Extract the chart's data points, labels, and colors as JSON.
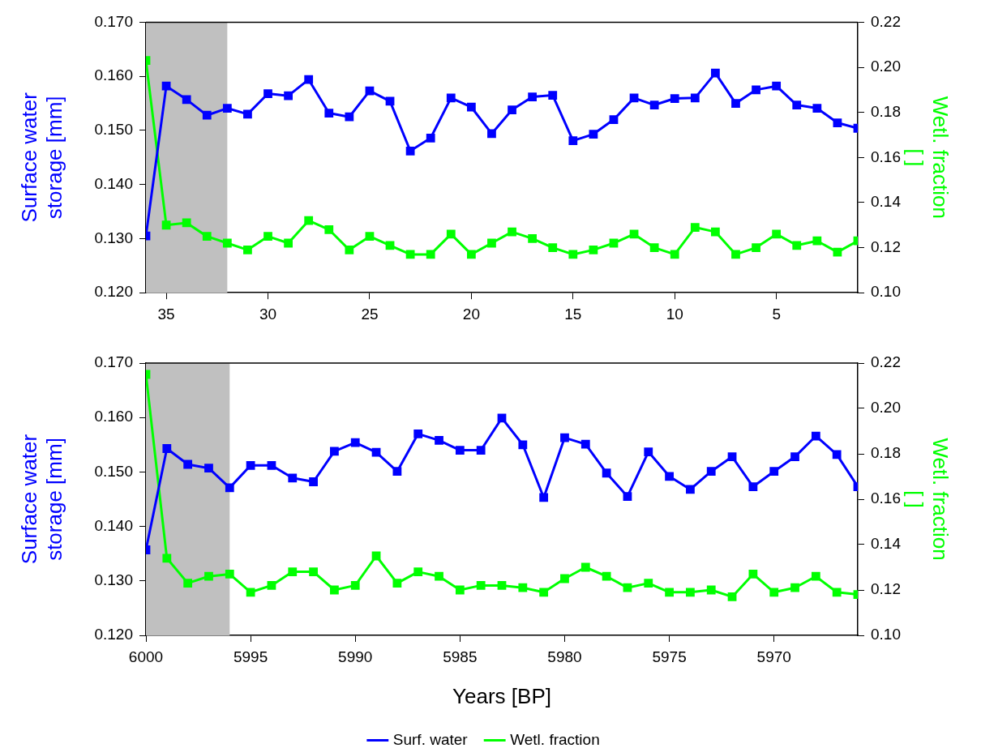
{
  "chart_data": [
    {
      "type": "line",
      "ylabel": "Surface water storage [mm]",
      "y2label": "Wetl. fraction [ ]",
      "marker": "square",
      "line_style": "solid",
      "grid": false,
      "legend": false,
      "x": [
        36,
        35,
        34,
        33,
        32,
        31,
        30,
        29,
        28,
        27,
        26,
        25,
        24,
        23,
        22,
        21,
        20,
        19,
        18,
        17,
        16,
        15,
        14,
        13,
        12,
        11,
        10,
        9,
        8,
        7,
        6,
        5,
        4,
        3,
        2,
        1
      ],
      "xlim": [
        36,
        1
      ],
      "xticks": [
        35,
        30,
        25,
        20,
        15,
        10,
        5
      ],
      "ylim": [
        0.12,
        0.17
      ],
      "yticks": [
        {
          "value": 0.12,
          "label": "0.120"
        },
        {
          "value": 0.13,
          "label": "0.130"
        },
        {
          "value": 0.14,
          "label": "0.140"
        },
        {
          "value": 0.15,
          "label": "0.150"
        },
        {
          "value": 0.16,
          "label": "0.160"
        },
        {
          "value": 0.17,
          "label": "0.170"
        }
      ],
      "y2lim": [
        0.1,
        0.22
      ],
      "y2ticks": [
        {
          "value": 0.1,
          "label": "0.10"
        },
        {
          "value": 0.12,
          "label": "0.12"
        },
        {
          "value": 0.14,
          "label": "0.14"
        },
        {
          "value": 0.16,
          "label": "0.16"
        },
        {
          "value": 0.18,
          "label": "0.18"
        },
        {
          "value": 0.2,
          "label": "0.20"
        },
        {
          "value": 0.22,
          "label": "0.22"
        }
      ],
      "bands": [
        {
          "axis": "x",
          "from": 36,
          "to": 32,
          "color": "#c0c0c0"
        }
      ],
      "series": [
        {
          "color": "#0000ff",
          "values": [
            0.1305,
            0.1582,
            0.1557,
            0.1528,
            0.1541,
            0.153,
            0.1568,
            0.1564,
            0.1594,
            0.1532,
            0.1525,
            0.1573,
            0.1554,
            0.1462,
            0.1486,
            0.156,
            0.1543,
            0.1494,
            0.1538,
            0.1562,
            0.1565,
            0.1481,
            0.1493,
            0.152,
            0.156,
            0.1547,
            0.1559,
            0.156,
            0.1606,
            0.155,
            0.1575,
            0.1582,
            0.1547,
            0.1541,
            0.1514,
            0.1504
          ]
        },
        {
          "color": "#00ff00",
          "axis": "y2",
          "values": [
            0.203,
            0.13,
            0.131,
            0.125,
            0.122,
            0.119,
            0.125,
            0.122,
            0.132,
            0.128,
            0.119,
            0.125,
            0.121,
            0.117,
            0.117,
            0.126,
            0.117,
            0.122,
            0.127,
            0.124,
            0.12,
            0.117,
            0.119,
            0.122,
            0.126,
            0.12,
            0.117,
            0.129,
            0.127,
            0.117,
            0.12,
            0.126,
            0.121,
            0.123,
            0.118,
            0.123
          ]
        }
      ]
    },
    {
      "type": "line",
      "xlabel": "Years [BP]",
      "ylabel": "Surface water storage [mm]",
      "y2label": "Wetl. fraction [ ]",
      "marker": "square",
      "line_style": "solid",
      "grid": false,
      "legend": "bottom",
      "x": [
        6000,
        5999,
        5998,
        5997,
        5996,
        5995,
        5994,
        5993,
        5992,
        5991,
        5990,
        5989,
        5988,
        5987,
        5986,
        5985,
        5984,
        5983,
        5982,
        5981,
        5980,
        5979,
        5978,
        5977,
        5976,
        5975,
        5974,
        5973,
        5972,
        5971,
        5970,
        5969,
        5968,
        5967,
        5966
      ],
      "xlim": [
        6000,
        5966
      ],
      "xticks": [
        6000,
        5995,
        5990,
        5985,
        5980,
        5975,
        5970
      ],
      "ylim": [
        0.12,
        0.17
      ],
      "yticks": [
        {
          "value": 0.12,
          "label": "0.120"
        },
        {
          "value": 0.13,
          "label": "0.130"
        },
        {
          "value": 0.14,
          "label": "0.140"
        },
        {
          "value": 0.15,
          "label": "0.150"
        },
        {
          "value": 0.16,
          "label": "0.160"
        },
        {
          "value": 0.17,
          "label": "0.170"
        }
      ],
      "y2lim": [
        0.1,
        0.22
      ],
      "y2ticks": [
        {
          "value": 0.1,
          "label": "0.10"
        },
        {
          "value": 0.12,
          "label": "0.12"
        },
        {
          "value": 0.14,
          "label": "0.14"
        },
        {
          "value": 0.16,
          "label": "0.16"
        },
        {
          "value": 0.18,
          "label": "0.18"
        },
        {
          "value": 0.2,
          "label": "0.20"
        },
        {
          "value": 0.22,
          "label": "0.22"
        }
      ],
      "bands": [
        {
          "axis": "x",
          "from": 6000,
          "to": 5996,
          "color": "#c0c0c0"
        }
      ],
      "series": [
        {
          "name": "Surf. water",
          "color": "#0000ff",
          "values": [
            0.1357,
            0.1543,
            0.1514,
            0.1507,
            0.1471,
            0.1512,
            0.1512,
            0.1489,
            0.1482,
            0.1538,
            0.1554,
            0.1536,
            0.1501,
            0.157,
            0.1558,
            0.154,
            0.154,
            0.1599,
            0.155,
            0.1453,
            0.1563,
            0.1551,
            0.1498,
            0.1455,
            0.1537,
            0.1492,
            0.1468,
            0.1501,
            0.1528,
            0.1473,
            0.1501,
            0.1528,
            0.1566,
            0.1532,
            0.1473
          ]
        },
        {
          "name": "Wetl. fraction",
          "color": "#00ff00",
          "axis": "y2",
          "values": [
            0.215,
            0.134,
            0.123,
            0.126,
            0.127,
            0.119,
            0.122,
            0.128,
            0.128,
            0.12,
            0.122,
            0.135,
            0.123,
            0.128,
            0.126,
            0.12,
            0.122,
            0.122,
            0.121,
            0.119,
            0.125,
            0.13,
            0.126,
            0.121,
            0.123,
            0.119,
            0.119,
            0.12,
            0.117,
            0.127,
            0.119,
            0.121,
            0.126,
            0.119,
            0.118
          ]
        }
      ]
    }
  ]
}
